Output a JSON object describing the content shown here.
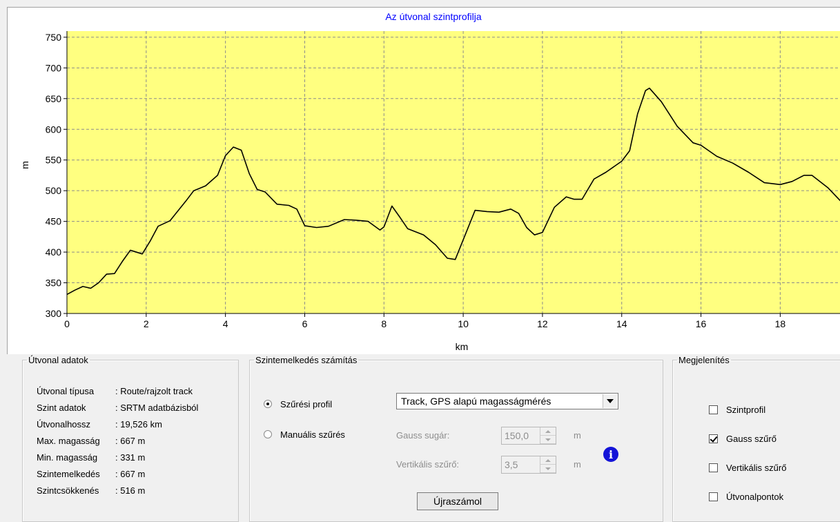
{
  "chart_data": {
    "type": "line",
    "title": "Az útvonal szintprofilja",
    "xlabel": "km",
    "ylabel": "m",
    "xlim": [
      0,
      19.526
    ],
    "ylim": [
      300,
      760
    ],
    "xticks": [
      0,
      2,
      4,
      6,
      8,
      10,
      12,
      14,
      16,
      18
    ],
    "yticks": [
      300,
      350,
      400,
      450,
      500,
      550,
      600,
      650,
      700,
      750
    ],
    "grid": true,
    "colors": {
      "plot_background": "#ffff80",
      "line": "#000000",
      "grid": "#8c8c8c",
      "title": "#0000ff"
    },
    "series": [
      {
        "x": [
          0,
          0.2,
          0.4,
          0.6,
          0.8,
          1.0,
          1.2,
          1.4,
          1.6,
          1.7,
          1.9,
          2.1,
          2.3,
          2.6,
          3.0,
          3.2,
          3.5,
          3.8,
          4.0,
          4.2,
          4.4,
          4.6,
          4.8,
          5.0,
          5.3,
          5.6,
          5.8,
          6.0,
          6.3,
          6.6,
          7.0,
          7.3,
          7.6,
          7.9,
          8.0,
          8.2,
          8.4,
          8.6,
          9.0,
          9.3,
          9.6,
          9.8,
          10.0,
          10.3,
          10.6,
          10.9,
          11.2,
          11.4,
          11.6,
          11.8,
          12.0,
          12.3,
          12.6,
          12.8,
          13.0,
          13.3,
          13.6,
          14.0,
          14.2,
          14.4,
          14.6,
          14.7,
          15.0,
          15.4,
          15.8,
          16.0,
          16.4,
          16.8,
          17.2,
          17.6,
          18.0,
          18.3,
          18.6,
          18.8,
          19.2,
          19.526
        ],
        "values": [
          331,
          338,
          344,
          341,
          350,
          364,
          365,
          385,
          403,
          401,
          397,
          418,
          442,
          451,
          483,
          500,
          508,
          525,
          557,
          571,
          566,
          528,
          502,
          498,
          478,
          476,
          470,
          443,
          440,
          442,
          453,
          452,
          450,
          436,
          441,
          475,
          457,
          438,
          428,
          412,
          390,
          388,
          420,
          468,
          466,
          465,
          470,
          463,
          440,
          428,
          432,
          473,
          490,
          486,
          486,
          519,
          530,
          548,
          565,
          625,
          663,
          667,
          645,
          605,
          578,
          574,
          556,
          545,
          530,
          513,
          510,
          515,
          525,
          525,
          505,
          483
        ]
      }
    ]
  },
  "route_data": {
    "legend": "Útvonal adatok",
    "rows": [
      {
        "key": "Útvonal típusa",
        "value": ": Route/rajzolt track"
      },
      {
        "key": "Szint adatok",
        "value": ": SRTM adatbázisból"
      },
      {
        "key": "Útvonalhossz",
        "value": ": 19,526 km"
      },
      {
        "key": "Max. magasság",
        "value": ": 667 m"
      },
      {
        "key": "Min. magasság",
        "value": ": 331 m"
      },
      {
        "key": "Szintemelkedés",
        "value": ": 667 m"
      },
      {
        "key": "Szintcsökkenés",
        "value": ": 516 m"
      }
    ]
  },
  "calc": {
    "legend": "Szintemelkedés számítás",
    "radio_profile": "Szűrési profil",
    "radio_manual": "Manuális szűrés",
    "profile_selected": true,
    "profile_select_value": "Track, GPS alapú magasságmérés",
    "gauss_label": "Gauss sugár:",
    "gauss_value": "150,0",
    "gauss_unit": "m",
    "vertical_label": "Vertikális szűrő:",
    "vertical_value": "3,5",
    "vertical_unit": "m",
    "info_icon": "info-icon",
    "info_glyph": "i",
    "recalc_button": "Újraszámol"
  },
  "display": {
    "legend": "Megjelenítés",
    "options": [
      {
        "label": "Szintprofil",
        "checked": false
      },
      {
        "label": "Gauss szűrő",
        "checked": true
      },
      {
        "label": "Vertikális szűrő",
        "checked": false
      },
      {
        "label": "Útvonalpontok",
        "checked": false
      }
    ]
  }
}
